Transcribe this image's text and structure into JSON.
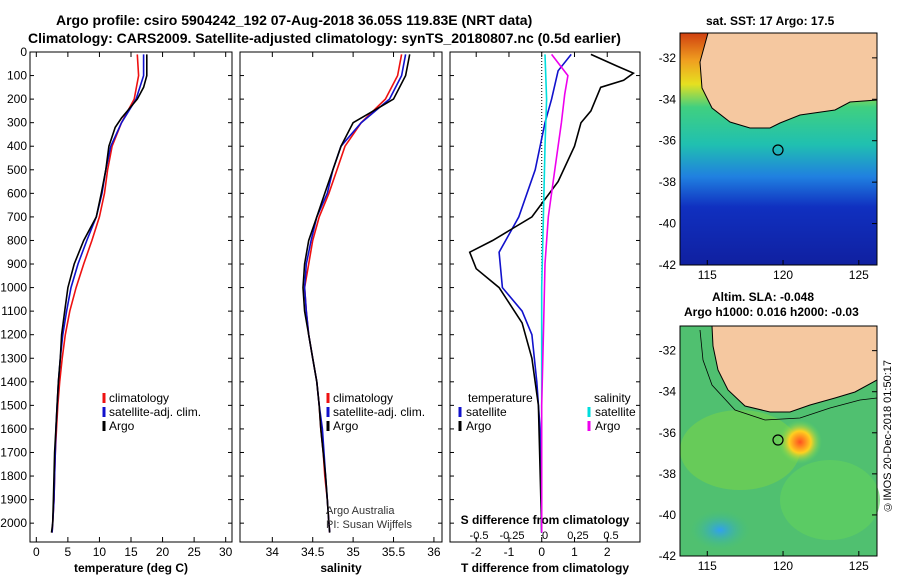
{
  "header": {
    "line1": "Argo profile: csiro 5904242_192 07-Aug-2018 36.05S 119.83E (NRT data)",
    "line2": "Climatology: CARS2009. Satellite-adjusted climatology: synTS_20180807.nc (0.5d earlier)"
  },
  "map_top": {
    "title": "sat. SST: 17 Argo: 17.5"
  },
  "map_bottom": {
    "title1": "Altim. SLA: -0.048",
    "title2": "Argo h1000: 0.016 h2000: -0.03"
  },
  "credit": "©IMOS 20-Dec-2018 01:50:17",
  "panel2_note": {
    "line1": "Argo Australia",
    "line2": "PI: Susan Wijffels"
  },
  "colors": {
    "climatology": "#ee1111",
    "satellite": "#1111cc",
    "argo": "#000000",
    "salinity_satellite": "#00dddd",
    "salinity_argo": "#ee00ee",
    "land": "#f5c8a0",
    "coast": "#000000"
  },
  "chart_data": [
    {
      "type": "line",
      "xlabel": "temperature (deg C)",
      "ylim": [
        2080,
        0
      ],
      "xlim": [
        -1,
        31
      ],
      "xticks": [
        0,
        5,
        10,
        15,
        20,
        25,
        30
      ],
      "yticks": [
        0,
        100,
        200,
        300,
        400,
        500,
        600,
        700,
        800,
        900,
        1000,
        1100,
        1200,
        1300,
        1400,
        1500,
        1600,
        1700,
        1800,
        1900,
        2000
      ],
      "legend": [
        "climatology",
        "satellite-adj. clim.",
        "Argo"
      ],
      "series": [
        {
          "name": "climatology",
          "color": "#ee1111",
          "points": [
            [
              16,
              10
            ],
            [
              16.2,
              100
            ],
            [
              15.5,
              200
            ],
            [
              13.5,
              300
            ],
            [
              12,
              400
            ],
            [
              11.3,
              500
            ],
            [
              10.8,
              600
            ],
            [
              10,
              700
            ],
            [
              8.8,
              800
            ],
            [
              7.5,
              900
            ],
            [
              6.3,
              1000
            ],
            [
              5.3,
              1100
            ],
            [
              4.6,
              1200
            ],
            [
              4.1,
              1300
            ],
            [
              3.7,
              1400
            ],
            [
              3.4,
              1500
            ],
            [
              3.2,
              1600
            ],
            [
              3.0,
              1700
            ],
            [
              2.9,
              1800
            ],
            [
              2.8,
              1900
            ],
            [
              2.6,
              2000
            ],
            [
              2.5,
              2040
            ]
          ]
        },
        {
          "name": "satellite-adj. clim.",
          "color": "#1111cc",
          "points": [
            [
              17,
              10
            ],
            [
              17,
              100
            ],
            [
              15.8,
              200
            ],
            [
              13.5,
              300
            ],
            [
              11.8,
              400
            ],
            [
              11,
              500
            ],
            [
              10.4,
              600
            ],
            [
              9.5,
              700
            ],
            [
              8,
              800
            ],
            [
              6.6,
              900
            ],
            [
              5.5,
              1000
            ],
            [
              4.8,
              1100
            ],
            [
              4.2,
              1200
            ],
            [
              3.8,
              1300
            ],
            [
              3.5,
              1400
            ],
            [
              3.3,
              1500
            ],
            [
              3.1,
              1600
            ],
            [
              3.0,
              1700
            ],
            [
              2.9,
              1800
            ],
            [
              2.8,
              1900
            ],
            [
              2.6,
              2000
            ],
            [
              2.5,
              2040
            ]
          ]
        },
        {
          "name": "Argo",
          "color": "#000000",
          "points": [
            [
              17.5,
              10
            ],
            [
              17.5,
              100
            ],
            [
              17,
              150
            ],
            [
              16,
              200
            ],
            [
              13.5,
              280
            ],
            [
              12.5,
              320
            ],
            [
              11.5,
              400
            ],
            [
              11,
              500
            ],
            [
              10.3,
              600
            ],
            [
              9.5,
              700
            ],
            [
              7.5,
              800
            ],
            [
              6,
              900
            ],
            [
              5,
              1000
            ],
            [
              4.5,
              1100
            ],
            [
              4.0,
              1200
            ],
            [
              3.8,
              1300
            ],
            [
              3.5,
              1400
            ],
            [
              3.3,
              1500
            ],
            [
              3.1,
              1600
            ],
            [
              2.9,
              1700
            ],
            [
              2.8,
              1800
            ],
            [
              2.7,
              1900
            ],
            [
              2.6,
              2000
            ],
            [
              2.4,
              2040
            ]
          ]
        }
      ]
    },
    {
      "type": "line",
      "xlabel": "salinity",
      "ylim": [
        2080,
        0
      ],
      "xlim": [
        33.6,
        36.1
      ],
      "xticks": [
        34,
        34.5,
        35,
        35.5,
        36
      ],
      "legend": [
        "climatology",
        "satellite-adj. clim.",
        "Argo"
      ],
      "series": [
        {
          "name": "climatology",
          "color": "#ee1111",
          "points": [
            [
              35.6,
              10
            ],
            [
              35.55,
              100
            ],
            [
              35.4,
              200
            ],
            [
              35.1,
              300
            ],
            [
              34.9,
              400
            ],
            [
              34.8,
              500
            ],
            [
              34.7,
              600
            ],
            [
              34.58,
              700
            ],
            [
              34.5,
              800
            ],
            [
              34.45,
              900
            ],
            [
              34.4,
              1000
            ],
            [
              34.42,
              1100
            ],
            [
              34.45,
              1200
            ],
            [
              34.5,
              1300
            ],
            [
              34.55,
              1400
            ],
            [
              34.58,
              1500
            ],
            [
              34.6,
              1600
            ],
            [
              34.63,
              1700
            ],
            [
              34.65,
              1800
            ],
            [
              34.68,
              1900
            ],
            [
              34.7,
              2000
            ],
            [
              34.71,
              2040
            ]
          ]
        },
        {
          "name": "satellite-adj. clim.",
          "color": "#1111cc",
          "points": [
            [
              35.65,
              10
            ],
            [
              35.6,
              100
            ],
            [
              35.45,
              200
            ],
            [
              35.1,
              300
            ],
            [
              34.85,
              400
            ],
            [
              34.75,
              500
            ],
            [
              34.68,
              600
            ],
            [
              34.55,
              700
            ],
            [
              34.48,
              800
            ],
            [
              34.42,
              900
            ],
            [
              34.4,
              1000
            ],
            [
              34.42,
              1100
            ],
            [
              34.45,
              1200
            ],
            [
              34.5,
              1300
            ],
            [
              34.55,
              1400
            ],
            [
              34.58,
              1500
            ],
            [
              34.62,
              1600
            ],
            [
              34.64,
              1700
            ],
            [
              34.66,
              1800
            ],
            [
              34.68,
              1900
            ],
            [
              34.7,
              2000
            ],
            [
              34.71,
              2040
            ]
          ]
        },
        {
          "name": "Argo",
          "color": "#000000",
          "points": [
            [
              35.7,
              10
            ],
            [
              35.65,
              100
            ],
            [
              35.5,
              200
            ],
            [
              35.25,
              250
            ],
            [
              35.0,
              300
            ],
            [
              34.85,
              400
            ],
            [
              34.75,
              500
            ],
            [
              34.65,
              600
            ],
            [
              34.55,
              700
            ],
            [
              34.45,
              800
            ],
            [
              34.4,
              900
            ],
            [
              34.38,
              1000
            ],
            [
              34.4,
              1100
            ],
            [
              34.45,
              1200
            ],
            [
              34.5,
              1300
            ],
            [
              34.55,
              1400
            ],
            [
              34.58,
              1500
            ],
            [
              34.6,
              1600
            ],
            [
              34.63,
              1700
            ],
            [
              34.66,
              1800
            ],
            [
              34.68,
              1900
            ],
            [
              34.7,
              2000
            ],
            [
              34.71,
              2040
            ]
          ]
        }
      ]
    },
    {
      "type": "line",
      "xlabel": "T difference from climatology",
      "xlabel_top": "S difference from climatology",
      "ylim": [
        2080,
        0
      ],
      "xlim": [
        -2.8,
        3.0
      ],
      "xticks": [
        -2,
        -1,
        0,
        1,
        2
      ],
      "xticks_top": [
        -0.5,
        -0.25,
        0,
        0.25,
        0.5
      ],
      "legend_left_title": "temperature",
      "legend_right_title": "salinity",
      "legend": [
        "satellite",
        "Argo",
        "satellite",
        "Argo"
      ],
      "series": [
        {
          "name": "satellite",
          "color": "#1111cc",
          "points": [
            [
              0.9,
              10
            ],
            [
              0.5,
              80
            ],
            [
              0.3,
              200
            ],
            [
              0.1,
              300
            ],
            [
              -0.2,
              500
            ],
            [
              -0.7,
              700
            ],
            [
              -1.3,
              850
            ],
            [
              -1.2,
              1000
            ],
            [
              -0.6,
              1100
            ],
            [
              -0.3,
              1200
            ],
            [
              -0.15,
              1400
            ],
            [
              -0.05,
              1600
            ],
            [
              0,
              2040
            ]
          ]
        },
        {
          "name": "Argo",
          "color": "#000000",
          "points": [
            [
              1.5,
              10
            ],
            [
              2.3,
              60
            ],
            [
              2.8,
              90
            ],
            [
              2.5,
              120
            ],
            [
              1.8,
              150
            ],
            [
              1.5,
              250
            ],
            [
              1.2,
              300
            ],
            [
              1.0,
              400
            ],
            [
              0.5,
              550
            ],
            [
              -0.3,
              700
            ],
            [
              -1.5,
              800
            ],
            [
              -2.2,
              850
            ],
            [
              -2.0,
              920
            ],
            [
              -1.3,
              1000
            ],
            [
              -0.6,
              1150
            ],
            [
              -0.3,
              1300
            ],
            [
              -0.1,
              1500
            ],
            [
              0,
              2040
            ]
          ]
        },
        {
          "name": "satellite",
          "color": "#00dddd",
          "points": [
            [
              0.1,
              10
            ],
            [
              0.15,
              200
            ],
            [
              0.1,
              400
            ],
            [
              0.05,
              700
            ],
            [
              0,
              1000
            ],
            [
              0,
              1400
            ],
            [
              0,
              2040
            ]
          ]
        },
        {
          "name": "Argo",
          "color": "#ee00ee",
          "points": [
            [
              0.3,
              10
            ],
            [
              0.8,
              100
            ],
            [
              0.7,
              180
            ],
            [
              0.6,
              300
            ],
            [
              0.4,
              500
            ],
            [
              0.2,
              700
            ],
            [
              0.1,
              900
            ],
            [
              0.05,
              1200
            ],
            [
              0,
              1500
            ],
            [
              0,
              2040
            ]
          ]
        }
      ]
    }
  ],
  "maps": {
    "xticks": [
      115,
      120,
      125
    ],
    "yticks": [
      -32,
      -34,
      -36,
      -38,
      -40,
      -42
    ]
  }
}
